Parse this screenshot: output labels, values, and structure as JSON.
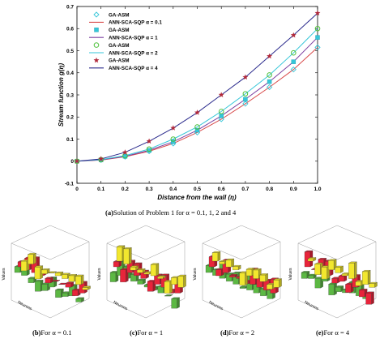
{
  "chart_data": [
    {
      "type": "line",
      "xlabel": "Distance from the wall (η)",
      "ylabel": "Stream function g(η)",
      "xlim": [
        0,
        1
      ],
      "ylim": [
        -0.1,
        0.7
      ],
      "x_ticks": [
        "0",
        "0.1",
        "0.2",
        "0.3",
        "0.4",
        "0.5",
        "0.6",
        "0.7",
        "0.8",
        "0.9",
        "1.0"
      ],
      "y_ticks": [
        "-0.1",
        "0",
        "0.1",
        "0.2",
        "0.3",
        "0.4",
        "0.5",
        "0.6",
        "0.7"
      ],
      "grid": false,
      "legend_position": "top-left",
      "x": [
        0,
        0.1,
        0.2,
        0.3,
        0.4,
        0.5,
        0.6,
        0.7,
        0.8,
        0.9,
        1.0
      ],
      "series": [
        {
          "name": "GA-ASM",
          "kind": "marker",
          "marker": "diamond",
          "color": "#35c6d8",
          "values": [
            0,
            0.005,
            0.02,
            0.045,
            0.08,
            0.13,
            0.19,
            0.26,
            0.335,
            0.415,
            0.515
          ]
        },
        {
          "name": "ANN-SCA-SQP  α = 0.1",
          "kind": "line",
          "color": "#d84a4a",
          "values": [
            0,
            0.005,
            0.02,
            0.045,
            0.08,
            0.13,
            0.19,
            0.26,
            0.335,
            0.415,
            0.515
          ]
        },
        {
          "name": "GA-ASM",
          "kind": "marker",
          "marker": "square",
          "color": "#35c6d8",
          "values": [
            0,
            0.006,
            0.022,
            0.049,
            0.088,
            0.14,
            0.205,
            0.28,
            0.36,
            0.45,
            0.56
          ]
        },
        {
          "name": "ANN-SCA-SQP  α = 1",
          "kind": "line",
          "color": "#7b3fa0",
          "values": [
            0,
            0.006,
            0.022,
            0.049,
            0.088,
            0.14,
            0.205,
            0.28,
            0.36,
            0.45,
            0.56
          ]
        },
        {
          "name": "GA-ASM",
          "kind": "marker",
          "marker": "circle",
          "color": "#4fc13c",
          "values": [
            0,
            0.007,
            0.025,
            0.055,
            0.1,
            0.155,
            0.225,
            0.305,
            0.39,
            0.49,
            0.6
          ]
        },
        {
          "name": "ANN-SCA-SQP  α = 2",
          "kind": "line",
          "color": "#35c6d8",
          "values": [
            0,
            0.007,
            0.025,
            0.055,
            0.1,
            0.155,
            0.225,
            0.305,
            0.39,
            0.49,
            0.6
          ]
        },
        {
          "name": "GA-ASM",
          "kind": "marker",
          "marker": "star",
          "color": "#b0283a",
          "values": [
            0,
            0.01,
            0.04,
            0.09,
            0.15,
            0.22,
            0.3,
            0.38,
            0.475,
            0.57,
            0.67
          ]
        },
        {
          "name": "ANN-SCA-SQP  α = 4",
          "kind": "line",
          "color": "#2a2a8c",
          "values": [
            0,
            0.01,
            0.04,
            0.09,
            0.15,
            0.22,
            0.3,
            0.38,
            0.475,
            0.57,
            0.67
          ]
        }
      ]
    },
    {
      "type": "bar",
      "variant": "3d",
      "zlabel": "Values",
      "xlabel": "Neurons",
      "panel": "b",
      "colors": [
        "#5cb843",
        "#e8243a",
        "#f2e72e"
      ]
    },
    {
      "type": "bar",
      "variant": "3d",
      "zlabel": "Values",
      "xlabel": "Neurons",
      "panel": "c",
      "colors": [
        "#5cb843",
        "#e8243a",
        "#f2e72e"
      ]
    },
    {
      "type": "bar",
      "variant": "3d",
      "zlabel": "Values",
      "xlabel": "Neurons",
      "panel": "d",
      "colors": [
        "#5cb843",
        "#e8243a",
        "#f2e72e"
      ]
    },
    {
      "type": "bar",
      "variant": "3d",
      "zlabel": "Values",
      "xlabel": "Neurons",
      "panel": "e",
      "colors": [
        "#5cb843",
        "#e8243a",
        "#f2e72e"
      ]
    }
  ],
  "captions": {
    "a": {
      "tag": "(a)",
      "text": "Solution of Problem 1 for α = 0.1, 1, 2 and 4"
    },
    "b": {
      "tag": "(b)",
      "text": "For α = 0.1"
    },
    "c": {
      "tag": "(c)",
      "text": "For α = 1"
    },
    "d": {
      "tag": "(d)",
      "text": "For α = 2"
    },
    "e": {
      "tag": "(e)",
      "text": "For α = 4"
    }
  }
}
